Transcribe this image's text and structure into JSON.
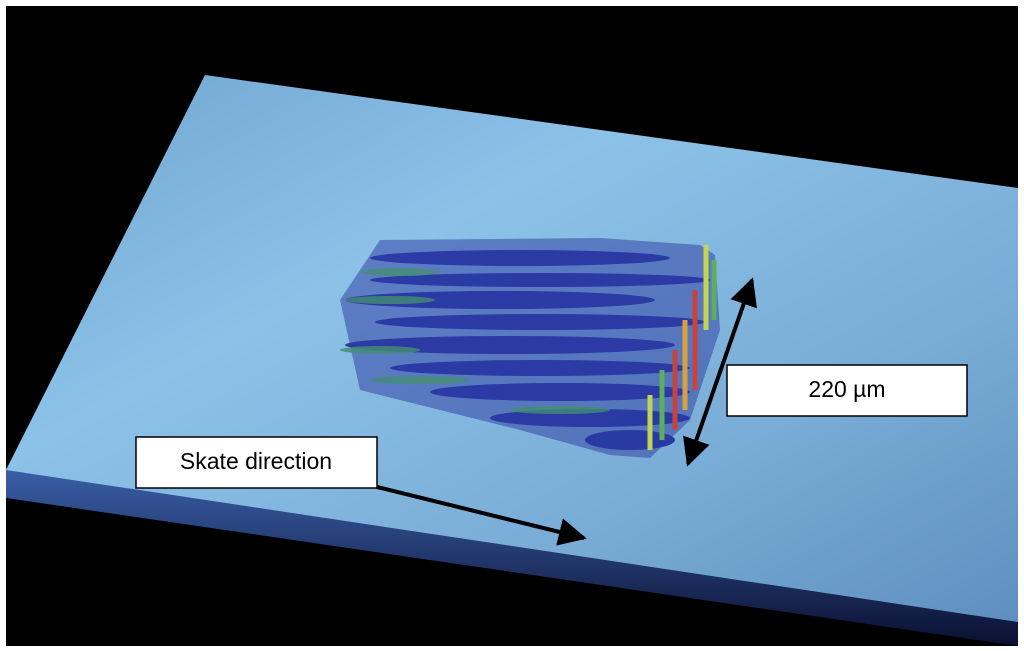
{
  "annotations": {
    "direction": "Skate direction",
    "width": "220 µm"
  }
}
